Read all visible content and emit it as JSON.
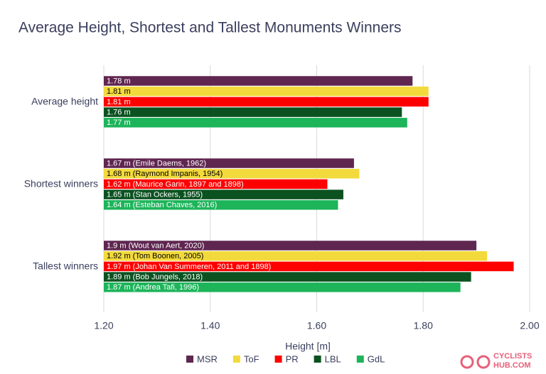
{
  "chart_data": {
    "type": "bar",
    "orientation": "horizontal",
    "title": "Average Height, Shortest and Tallest Monuments Winners",
    "categories": [
      "Average height",
      "Shortest winners",
      "Tallest winners"
    ],
    "series": [
      {
        "name": "MSR",
        "color": "#5f2650",
        "values": [
          1.78,
          1.67,
          1.9
        ],
        "value_labels": [
          "1.78 m",
          "1.67 m (Emile Daems, 1962)",
          "1.9 m (Wout van Aert, 2020)"
        ]
      },
      {
        "name": "ToF",
        "color": "#f2da3c",
        "values": [
          1.81,
          1.68,
          1.92
        ],
        "value_labels": [
          "1.81 m",
          "1.68 m (Raymond Impanis, 1954)",
          "1.92 m (Tom Boonen, 2005)"
        ]
      },
      {
        "name": "PR",
        "color": "#ff0000",
        "values": [
          1.81,
          1.62,
          1.97
        ],
        "value_labels": [
          "1.81 m",
          "1.62 m (Maurice Garin, 1897 and 1898)",
          "1.97 m (Johan Van Summeren, 2011 and 1898)"
        ]
      },
      {
        "name": "LBL",
        "color": "#0b5220",
        "values": [
          1.76,
          1.65,
          1.89
        ],
        "value_labels": [
          "1.76 m",
          "1.65 m (Stan Ockers, 1955)",
          "1.89 m (Bob Jungels, 2018)"
        ]
      },
      {
        "name": "GdL",
        "color": "#1db45a",
        "values": [
          1.77,
          1.64,
          1.87
        ],
        "value_labels": [
          "1.77 m",
          "1.64 m (Esteban Chaves, 2016)",
          "1.87 m (Andrea Tafi, 1996)"
        ]
      }
    ],
    "xlabel": "Height [m]",
    "xlim": [
      1.2,
      2.0
    ],
    "xticks": [
      {
        "value": 1.2,
        "label": "1.20"
      },
      {
        "value": 1.4,
        "label": "1.40"
      },
      {
        "value": 1.6,
        "label": "1.60"
      },
      {
        "value": 1.8,
        "label": "1.80"
      },
      {
        "value": 2.0,
        "label": "2.00"
      }
    ],
    "grid": true,
    "legend": "bottom"
  },
  "logo": [
    "CYCLISTS",
    "HUB.COM"
  ]
}
